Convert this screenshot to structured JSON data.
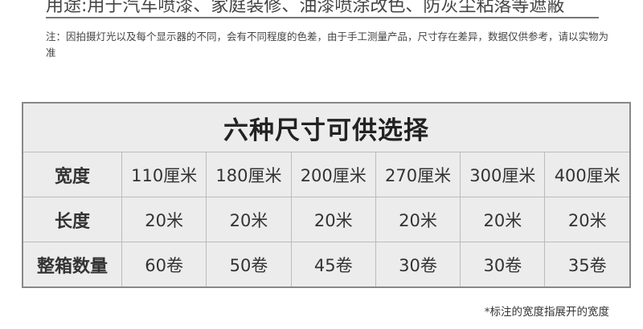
{
  "usage": "用途:用于汽车喷漆、家庭装修、油漆喷涂改色、防灰尘粘落等遮蔽",
  "note": "注：因拍摄灯光以及每个显示器的不同，会有不同程度的色差，由于手工测量产品，尺寸存在差异，数据仅供参考，请以实物为准",
  "table": {
    "title": "六种尺寸可供选择",
    "rows": [
      {
        "label": "宽度",
        "cells": [
          "110厘米",
          "180厘米",
          "200厘米",
          "270厘米",
          "300厘米",
          "400厘米"
        ]
      },
      {
        "label": "长度",
        "cells": [
          "20米",
          "20米",
          "20米",
          "20米",
          "20米",
          "20米"
        ]
      },
      {
        "label": "整箱数量",
        "cells": [
          "60卷",
          "50卷",
          "45卷",
          "30卷",
          "30卷",
          "35卷"
        ]
      }
    ]
  },
  "footnote": "*标注的宽度指展开的宽度"
}
